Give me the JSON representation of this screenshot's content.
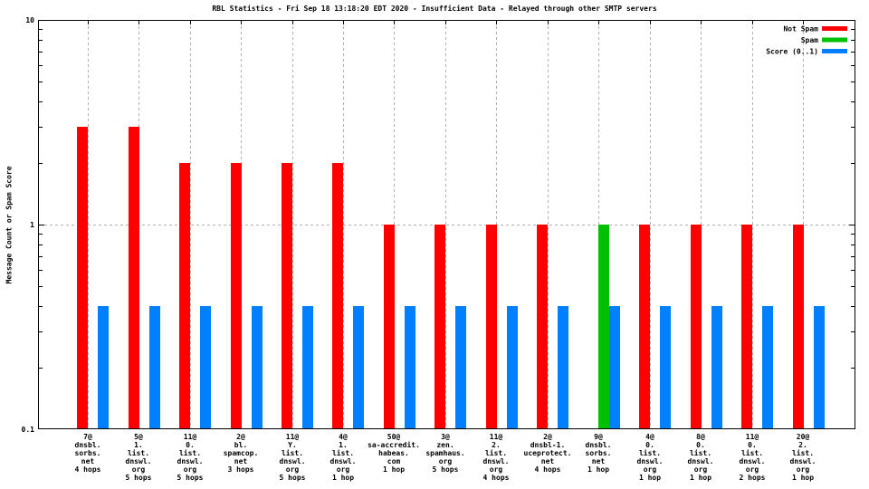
{
  "title": "RBL Statistics - Fri Sep 18 13:18:20 EDT 2020 - Insufficient Data - Relayed through other SMTP servers",
  "y_axis_label": "Message Count or Spam Score",
  "y_tick_labels": [
    "10",
    "1",
    "0.1"
  ],
  "legend": {
    "items": [
      {
        "label": "Not Spam",
        "color": "#ff0000"
      },
      {
        "label": "Spam",
        "color": "#00c000"
      },
      {
        "label": "Score (0..1)",
        "color": "#0080ff"
      }
    ]
  },
  "colors": {
    "background": "#ffffff",
    "axis": "#000000",
    "grid": "#b0b0b0",
    "not_spam": "#ff0000",
    "spam": "#00c000",
    "score": "#0080ff"
  },
  "chart_data": {
    "type": "bar",
    "title": "RBL Statistics - Fri Sep 18 13:18:20 EDT 2020 - Insufficient Data - Relayed through other SMTP servers",
    "xlabel": "",
    "ylabel": "Message Count or Spam Score",
    "y_scale": "log",
    "ylim": [
      0.1,
      10
    ],
    "y_major_ticks": [
      0.1,
      1,
      10
    ],
    "grid": "on",
    "legend_position": "top-right-inside",
    "categories": [
      [
        "7@",
        "dnsbl.",
        "sorbs.",
        "net",
        "4 hops"
      ],
      [
        "5@",
        "1.",
        "list.",
        "dnswl.",
        "org",
        "5 hops"
      ],
      [
        "11@",
        "0.",
        "list.",
        "dnswl.",
        "org",
        "5 hops"
      ],
      [
        "2@",
        "bl.",
        "spamcop.",
        "net",
        "3 hops"
      ],
      [
        "11@",
        "Y.",
        "list.",
        "dnswl.",
        "org",
        "5 hops"
      ],
      [
        "4@",
        "1.",
        "list.",
        "dnswl.",
        "org",
        "1 hop"
      ],
      [
        "50@",
        "sa-accredit.",
        "habeas.",
        "com",
        "1 hop"
      ],
      [
        "3@",
        "zen.",
        "spamhaus.",
        "org",
        "5 hops"
      ],
      [
        "11@",
        "2.",
        "list.",
        "dnswl.",
        "org",
        "4 hops"
      ],
      [
        "2@",
        "dnsbl-1.",
        "uceprotect.",
        "net",
        "4 hops"
      ],
      [
        "9@",
        "dnsbl.",
        "sorbs.",
        "net",
        "1 hop"
      ],
      [
        "4@",
        "0.",
        "list.",
        "dnswl.",
        "org",
        "1 hop"
      ],
      [
        "8@",
        "0.",
        "list.",
        "dnswl.",
        "org",
        "1 hop"
      ],
      [
        "11@",
        "0.",
        "list.",
        "dnswl.",
        "org",
        "2 hops"
      ],
      [
        "20@",
        "2.",
        "list.",
        "dnswl.",
        "org",
        "1 hop"
      ]
    ],
    "series": [
      {
        "name": "Not Spam",
        "color": "#ff0000",
        "values": [
          3,
          3,
          2,
          2,
          2,
          2,
          1,
          1,
          1,
          1,
          0,
          1,
          1,
          1,
          1
        ]
      },
      {
        "name": "Spam",
        "color": "#00c000",
        "values": [
          0,
          0,
          0,
          0,
          0,
          0,
          0,
          0,
          0,
          0,
          1,
          0,
          0,
          0,
          0
        ]
      },
      {
        "name": "Score (0..1)",
        "color": "#0080ff",
        "values": [
          0.4,
          0.4,
          0.4,
          0.4,
          0.4,
          0.4,
          0.4,
          0.4,
          0.4,
          0.4,
          0.4,
          0.4,
          0.4,
          0.4,
          0.4
        ]
      }
    ]
  }
}
